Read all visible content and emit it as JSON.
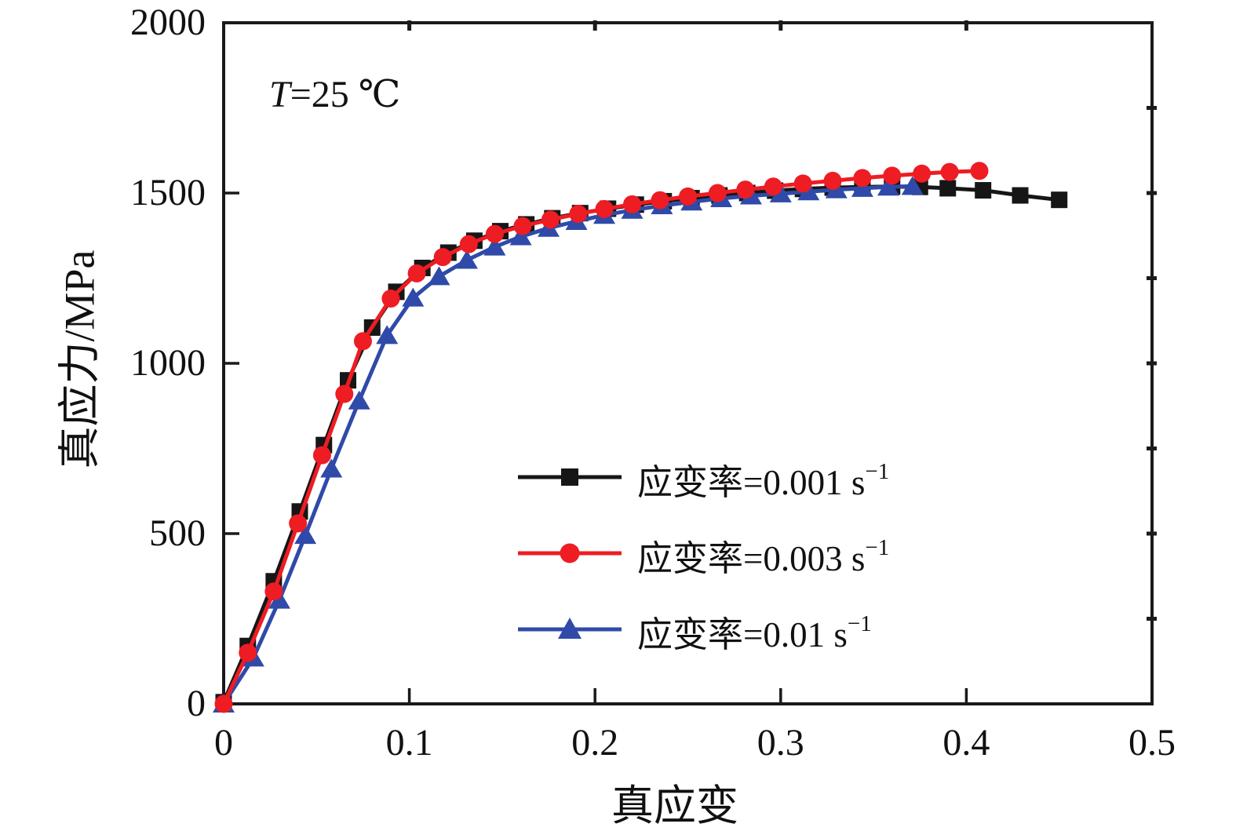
{
  "figure": {
    "background": "#ffffff",
    "frame_color": "#1a1a1a"
  },
  "annotation": {
    "full": "T=25 ℃",
    "italic_part": "T",
    "rest_part": "=25 ℃"
  },
  "chart_data": {
    "type": "line",
    "title": "",
    "xlabel": "真应变",
    "ylabel": "真应力/MPa",
    "xlim": [
      0,
      0.5
    ],
    "ylim": [
      0,
      2000
    ],
    "grid": false,
    "frame": true,
    "legend_position": "center-right-inside",
    "x_ticks": [
      0,
      0.1,
      0.2,
      0.3,
      0.4,
      0.5
    ],
    "x_tick_labels": [
      "0",
      "0.1",
      "0.2",
      "0.3",
      "0.4",
      "0.5"
    ],
    "y_ticks": [
      0,
      500,
      1000,
      1500,
      2000
    ],
    "y_tick_labels": [
      "0",
      "500",
      "1000",
      "1500",
      "2000"
    ],
    "top_ticks": [
      0.1,
      0.2,
      0.3,
      0.4
    ],
    "right_tick_step": 250,
    "series": [
      {
        "name": "应变率=0.001 s⁻¹",
        "label": "应变率=0.001 s",
        "label_sup": "−1",
        "color": "#161616",
        "marker": "square",
        "line_width": 5,
        "points": [
          [
            0,
            5
          ],
          [
            0.013,
            170
          ],
          [
            0.027,
            360
          ],
          [
            0.041,
            565
          ],
          [
            0.054,
            760
          ],
          [
            0.067,
            950
          ],
          [
            0.08,
            1105
          ],
          [
            0.093,
            1210
          ],
          [
            0.107,
            1280
          ],
          [
            0.121,
            1325
          ],
          [
            0.135,
            1360
          ],
          [
            0.149,
            1388
          ],
          [
            0.163,
            1408
          ],
          [
            0.177,
            1426
          ],
          [
            0.192,
            1441
          ],
          [
            0.207,
            1454
          ],
          [
            0.222,
            1466
          ],
          [
            0.237,
            1476
          ],
          [
            0.252,
            1485
          ],
          [
            0.267,
            1493
          ],
          [
            0.282,
            1500
          ],
          [
            0.297,
            1507
          ],
          [
            0.312,
            1512
          ],
          [
            0.328,
            1516
          ],
          [
            0.344,
            1518
          ],
          [
            0.36,
            1519
          ],
          [
            0.375,
            1518
          ],
          [
            0.39,
            1514
          ],
          [
            0.409,
            1508
          ],
          [
            0.429,
            1493
          ],
          [
            0.45,
            1480
          ]
        ]
      },
      {
        "name": "应变率=0.003 s⁻¹",
        "label": "应变率=0.003 s",
        "label_sup": "−1",
        "color": "#ee1c23",
        "marker": "circle",
        "line_width": 5,
        "points": [
          [
            0,
            0
          ],
          [
            0.013,
            150
          ],
          [
            0.027,
            330
          ],
          [
            0.04,
            530
          ],
          [
            0.053,
            730
          ],
          [
            0.065,
            910
          ],
          [
            0.075,
            1065
          ],
          [
            0.09,
            1190
          ],
          [
            0.104,
            1264
          ],
          [
            0.118,
            1312
          ],
          [
            0.132,
            1350
          ],
          [
            0.146,
            1380
          ],
          [
            0.161,
            1403
          ],
          [
            0.176,
            1422
          ],
          [
            0.191,
            1439
          ],
          [
            0.205,
            1453
          ],
          [
            0.22,
            1467
          ],
          [
            0.235,
            1479
          ],
          [
            0.25,
            1490
          ],
          [
            0.266,
            1500
          ],
          [
            0.281,
            1510
          ],
          [
            0.296,
            1519
          ],
          [
            0.312,
            1528
          ],
          [
            0.328,
            1536
          ],
          [
            0.344,
            1544
          ],
          [
            0.36,
            1551
          ],
          [
            0.376,
            1557
          ],
          [
            0.391,
            1562
          ],
          [
            0.407,
            1565
          ]
        ]
      },
      {
        "name": "应变率=0.01 s⁻¹",
        "label": "应变率=0.01 s",
        "label_sup": "−1",
        "color": "#2f4aa8",
        "marker": "triangle",
        "line_width": 5,
        "points": [
          [
            0,
            0
          ],
          [
            0.016,
            135
          ],
          [
            0.03,
            305
          ],
          [
            0.044,
            495
          ],
          [
            0.058,
            690
          ],
          [
            0.073,
            890
          ],
          [
            0.088,
            1082
          ],
          [
            0.102,
            1192
          ],
          [
            0.116,
            1255
          ],
          [
            0.131,
            1303
          ],
          [
            0.146,
            1342
          ],
          [
            0.16,
            1372
          ],
          [
            0.175,
            1397
          ],
          [
            0.19,
            1417
          ],
          [
            0.205,
            1435
          ],
          [
            0.22,
            1450
          ],
          [
            0.236,
            1463
          ],
          [
            0.252,
            1474
          ],
          [
            0.268,
            1484
          ],
          [
            0.284,
            1492
          ],
          [
            0.3,
            1498
          ],
          [
            0.315,
            1504
          ],
          [
            0.33,
            1510
          ],
          [
            0.344,
            1514
          ],
          [
            0.358,
            1518
          ],
          [
            0.371,
            1520
          ]
        ]
      }
    ]
  }
}
